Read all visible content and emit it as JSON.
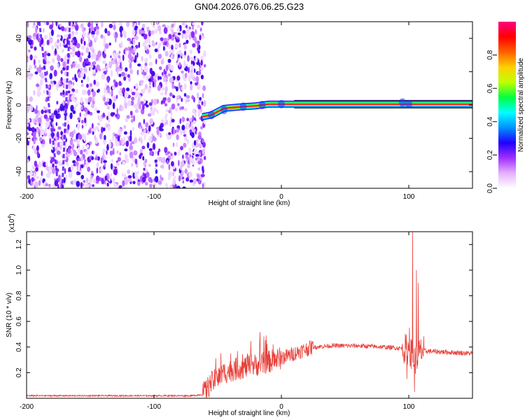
{
  "title": "GN04.2026.076.06.25.G23",
  "chart_data": [
    {
      "type": "heatmap",
      "title": "GN04.2026.076.06.25.G23",
      "xlabel": "Height of straight line (km)",
      "ylabel": "Frequency (Hz)",
      "xlim": [
        -200,
        150
      ],
      "ylim": [
        -50,
        50
      ],
      "xticks": [
        -200,
        -100,
        0,
        100
      ],
      "yticks": [
        -40,
        -20,
        0,
        20,
        40
      ],
      "grid": false,
      "noise_region_x": [
        -200,
        -60
      ],
      "colorbar": {
        "label": "Normalized spectral amplitude",
        "range": [
          0,
          1
        ],
        "ticks": [
          0.0,
          0.2,
          0.4,
          0.6,
          0.8
        ],
        "tick_labels": [
          "0.0",
          "0.2",
          "0.4",
          "0.6",
          "0.8"
        ],
        "colors": [
          "#ffffff",
          "#e6b0ff",
          "#a030ff",
          "#2000ff",
          "#0090ff",
          "#00ffff",
          "#00ff40",
          "#c0ff00",
          "#ffd000",
          "#ff6000",
          "#ff0000",
          "#ff0080"
        ]
      },
      "tone": {
        "name": "carrier",
        "points": [
          {
            "x": -62,
            "y": -7
          },
          {
            "x": -55,
            "y": -6
          },
          {
            "x": -50,
            "y": -4
          },
          {
            "x": -45,
            "y": -2
          },
          {
            "x": -38,
            "y": -1.5
          },
          {
            "x": -30,
            "y": -1
          },
          {
            "x": -20,
            "y": -0.5
          },
          {
            "x": -15,
            "y": 0
          },
          {
            "x": -10,
            "y": 0.5
          },
          {
            "x": 0,
            "y": 0.5
          },
          {
            "x": 10,
            "y": 0.5
          },
          {
            "x": 50,
            "y": 0.5
          },
          {
            "x": 90,
            "y": 0.5
          },
          {
            "x": 100,
            "y": 0.5
          },
          {
            "x": 150,
            "y": 0.5
          }
        ]
      }
    },
    {
      "type": "line",
      "xlabel": "Height of straight line (km)",
      "ylabel": "SNR (10 * v/v)",
      "y_multiplier": "(x10",
      "y_multiplier_exp": "4",
      "y_multiplier_close": ")",
      "xlim": [
        -200,
        150
      ],
      "ylim": [
        0,
        1.3
      ],
      "xticks": [
        -200,
        -100,
        0,
        100
      ],
      "yticks": [
        0.2,
        0.4,
        0.6,
        0.8,
        1.0,
        1.2
      ],
      "grid": false,
      "color": "#e8403a",
      "series": [
        {
          "name": "SNR",
          "points": [
            {
              "x": -200,
              "y": 0.02
            },
            {
              "x": -150,
              "y": 0.02
            },
            {
              "x": -100,
              "y": 0.02
            },
            {
              "x": -70,
              "y": 0.02
            },
            {
              "x": -62,
              "y": 0.03
            },
            {
              "x": -55,
              "y": 0.12
            },
            {
              "x": -45,
              "y": 0.2
            },
            {
              "x": -35,
              "y": 0.23
            },
            {
              "x": -25,
              "y": 0.25
            },
            {
              "x": -15,
              "y": 0.27
            },
            {
              "x": -5,
              "y": 0.3
            },
            {
              "x": 5,
              "y": 0.33
            },
            {
              "x": 15,
              "y": 0.37
            },
            {
              "x": 25,
              "y": 0.4
            },
            {
              "x": 40,
              "y": 0.41
            },
            {
              "x": 60,
              "y": 0.41
            },
            {
              "x": 80,
              "y": 0.4
            },
            {
              "x": 95,
              "y": 0.39
            },
            {
              "x": 100,
              "y": 0.38
            },
            {
              "x": 105,
              "y": 0.3
            },
            {
              "x": 110,
              "y": 0.37
            },
            {
              "x": 130,
              "y": 0.36
            },
            {
              "x": 150,
              "y": 0.35
            }
          ],
          "spikes": [
            {
              "x": 103,
              "y": 1.3
            },
            {
              "x": 104.5,
              "y": 0.05
            },
            {
              "x": 106,
              "y": 1.0
            },
            {
              "x": 107.5,
              "y": 0.9
            },
            {
              "x": 100.5,
              "y": 0.55
            },
            {
              "x": 98.5,
              "y": 0.15
            }
          ]
        }
      ]
    }
  ]
}
